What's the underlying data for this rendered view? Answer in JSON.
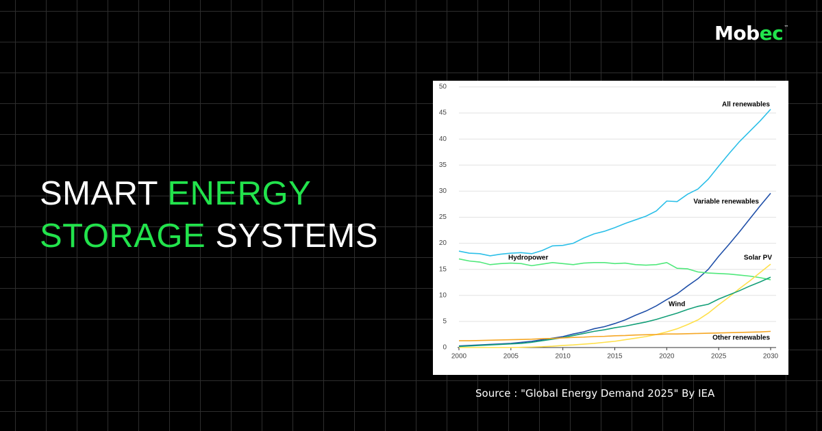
{
  "brand": {
    "name": "Mob",
    "accent": "ec",
    "mark": "™"
  },
  "headline": {
    "line1": [
      "SMART",
      "ENERGY"
    ],
    "line2": [
      "STORAGE",
      "SYSTEMS"
    ]
  },
  "source": "Source : \"Global Energy Demand 2025\" By IEA",
  "chart_data": {
    "type": "line",
    "x": [
      2000,
      2001,
      2002,
      2003,
      2004,
      2005,
      2006,
      2007,
      2008,
      2009,
      2010,
      2011,
      2012,
      2013,
      2014,
      2015,
      2016,
      2017,
      2018,
      2019,
      2020,
      2021,
      2022,
      2023,
      2024,
      2025,
      2026,
      2027,
      2028,
      2029,
      2030
    ],
    "xlim": [
      2000,
      2030
    ],
    "xticks": [
      2000,
      2005,
      2010,
      2015,
      2020,
      2025,
      2030
    ],
    "ylim": [
      0,
      50
    ],
    "yticks": [
      0,
      5,
      10,
      15,
      20,
      25,
      30,
      35,
      40,
      45,
      50
    ],
    "grid": true,
    "series": [
      {
        "name": "All renewables",
        "color": "#2bbfe8",
        "values": [
          18.5,
          18.1,
          18.0,
          17.6,
          17.9,
          18.1,
          18.2,
          18.0,
          18.6,
          19.5,
          19.6,
          20.0,
          21.0,
          21.8,
          22.3,
          23.0,
          23.8,
          24.5,
          25.2,
          26.2,
          28.1,
          28.0,
          29.4,
          30.4,
          32.3,
          34.8,
          37.2,
          39.5,
          41.5,
          43.5,
          45.7
        ]
      },
      {
        "name": "Variable renewables",
        "color": "#1f4fa8",
        "values": [
          0.3,
          0.4,
          0.5,
          0.6,
          0.7,
          0.8,
          1.0,
          1.2,
          1.5,
          1.8,
          2.1,
          2.6,
          3.0,
          3.6,
          4.0,
          4.6,
          5.3,
          6.2,
          7.0,
          8.0,
          9.2,
          10.3,
          11.8,
          13.2,
          15.0,
          17.5,
          19.8,
          22.2,
          24.7,
          27.2,
          29.6
        ]
      },
      {
        "name": "Hydropower",
        "color": "#4ee87a",
        "values": [
          17.0,
          16.6,
          16.4,
          15.9,
          16.1,
          16.2,
          16.1,
          15.7,
          16.0,
          16.3,
          16.1,
          15.9,
          16.2,
          16.3,
          16.3,
          16.1,
          16.2,
          15.9,
          15.8,
          15.9,
          16.3,
          15.2,
          15.1,
          14.5,
          14.3,
          14.2,
          14.1,
          13.9,
          13.7,
          13.4,
          13.0
        ]
      },
      {
        "name": "Solar PV",
        "color": "#ffe04a",
        "values": [
          0,
          0,
          0,
          0,
          0,
          0,
          0.05,
          0.1,
          0.15,
          0.25,
          0.4,
          0.5,
          0.65,
          0.8,
          1.0,
          1.2,
          1.5,
          1.8,
          2.1,
          2.5,
          3.0,
          3.6,
          4.4,
          5.3,
          6.6,
          8.2,
          9.7,
          11.3,
          12.8,
          14.4,
          16.0
        ]
      },
      {
        "name": "Wind",
        "color": "#139f78",
        "values": [
          0.2,
          0.3,
          0.4,
          0.5,
          0.6,
          0.7,
          0.8,
          1.0,
          1.3,
          1.6,
          1.9,
          2.3,
          2.7,
          3.1,
          3.4,
          3.8,
          4.1,
          4.5,
          4.9,
          5.4,
          6.0,
          6.6,
          7.3,
          7.9,
          8.3,
          9.3,
          10.1,
          10.9,
          11.8,
          12.6,
          13.5
        ]
      },
      {
        "name": "Other renewables",
        "color": "#f5a623",
        "values": [
          1.3,
          1.3,
          1.35,
          1.4,
          1.45,
          1.5,
          1.55,
          1.6,
          1.7,
          1.75,
          1.85,
          1.95,
          2.0,
          2.1,
          2.15,
          2.25,
          2.3,
          2.4,
          2.45,
          2.5,
          2.6,
          2.6,
          2.65,
          2.7,
          2.75,
          2.8,
          2.85,
          2.9,
          2.95,
          3.0,
          3.1
        ]
      }
    ]
  }
}
